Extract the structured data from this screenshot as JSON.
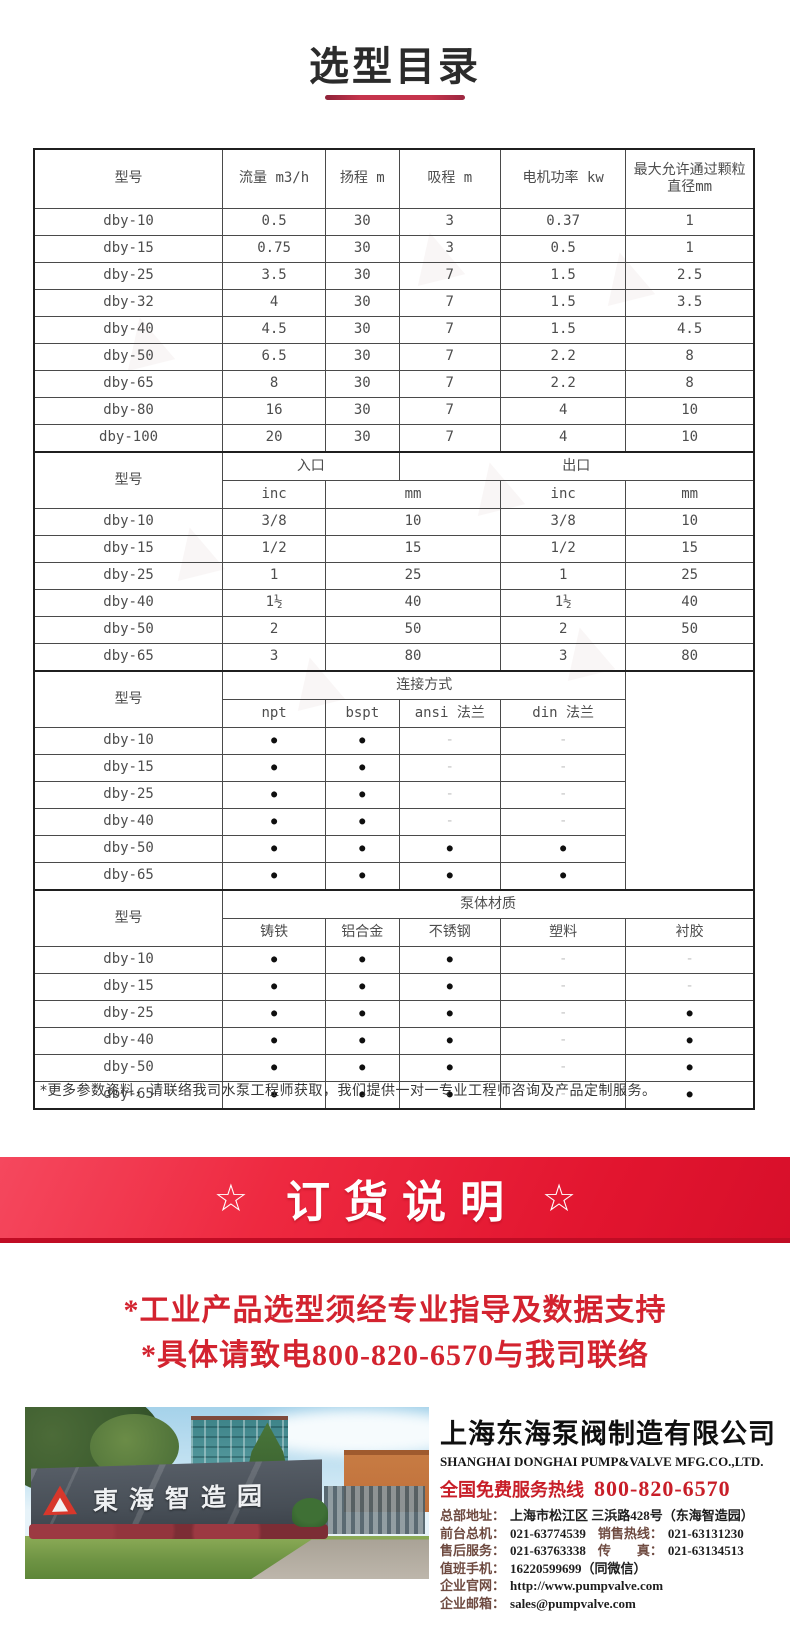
{
  "page": {
    "title": "选型目录"
  },
  "colors": {
    "accent_red": "#d3232f",
    "banner_red": "#e2152f",
    "title_underline": "#c5344c",
    "table_border": "#1f1f1f",
    "hotline_red": "#c81e28"
  },
  "table1": {
    "headers": [
      "型号",
      "流量 m3/h",
      "扬程 m",
      "吸程 m",
      "电机功率 kw",
      "最大允许通过颗粒直径mm"
    ],
    "rows": [
      [
        "dby-10",
        "0.5",
        "30",
        "3",
        "0.37",
        "1"
      ],
      [
        "dby-15",
        "0.75",
        "30",
        "3",
        "0.5",
        "1"
      ],
      [
        "dby-25",
        "3.5",
        "30",
        "7",
        "1.5",
        "2.5"
      ],
      [
        "dby-32",
        "4",
        "30",
        "7",
        "1.5",
        "3.5"
      ],
      [
        "dby-40",
        "4.5",
        "30",
        "7",
        "1.5",
        "4.5"
      ],
      [
        "dby-50",
        "6.5",
        "30",
        "7",
        "2.2",
        "8"
      ],
      [
        "dby-65",
        "8",
        "30",
        "7",
        "2.2",
        "8"
      ],
      [
        "dby-80",
        "16",
        "30",
        "7",
        "4",
        "10"
      ],
      [
        "dby-100",
        "20",
        "30",
        "7",
        "4",
        "10"
      ]
    ]
  },
  "table2": {
    "model_header": "型号",
    "group_headers": [
      "入口",
      "出口"
    ],
    "sub_headers": [
      "inc",
      "mm",
      "inc",
      "mm"
    ],
    "rows": [
      [
        "dby-10",
        "3/8",
        "10",
        "3/8",
        "10"
      ],
      [
        "dby-15",
        "1/2",
        "15",
        "1/2",
        "15"
      ],
      [
        "dby-25",
        "1",
        "25",
        "1",
        "25"
      ],
      [
        "dby-40",
        "1½",
        "40",
        "1½",
        "40"
      ],
      [
        "dby-50",
        "2",
        "50",
        "2",
        "50"
      ],
      [
        "dby-65",
        "3",
        "80",
        "3",
        "80"
      ]
    ]
  },
  "table3": {
    "model_header": "型号",
    "group_header": "连接方式",
    "sub_headers": [
      "npt",
      "bspt",
      "ansi 法兰",
      "din 法兰"
    ],
    "rows": [
      [
        "dby-10",
        "●",
        "●",
        "-",
        "-"
      ],
      [
        "dby-15",
        "●",
        "●",
        "-",
        "-"
      ],
      [
        "dby-25",
        "●",
        "●",
        "-",
        "-"
      ],
      [
        "dby-40",
        "●",
        "●",
        "-",
        "-"
      ],
      [
        "dby-50",
        "●",
        "●",
        "●",
        "●"
      ],
      [
        "dby-65",
        "●",
        "●",
        "●",
        "●"
      ]
    ]
  },
  "table4": {
    "model_header": "型号",
    "group_header": "泵体材质",
    "sub_headers": [
      "铸铁",
      "铝合金",
      "不锈钢",
      "塑料",
      "衬胶"
    ],
    "rows": [
      [
        "dby-10",
        "●",
        "●",
        "●",
        "-",
        "-"
      ],
      [
        "dby-15",
        "●",
        "●",
        "●",
        "-",
        "-"
      ],
      [
        "dby-25",
        "●",
        "●",
        "●",
        "-",
        "●"
      ],
      [
        "dby-40",
        "●",
        "●",
        "●",
        "-",
        "●"
      ],
      [
        "dby-50",
        "●",
        "●",
        "●",
        "-",
        "●"
      ],
      [
        "dby-65",
        "●",
        "●",
        "●",
        "-",
        "●"
      ]
    ]
  },
  "footnote": "*更多参数资料，请联络我司水泵工程师获取，我们提供一对一专业工程师咨询及产品定制服务。",
  "banner": {
    "star": "☆",
    "text": "订货说明"
  },
  "notices": [
    "*工业产品选型须经专业指导及数据支持",
    "*具体请致电800-820-6570与我司联络"
  ],
  "footer": {
    "photo_sign_text": "東海智造园",
    "company_cn": "上海东海泵阀制造有限公司",
    "company_en": "SHANGHAI DONGHAI PUMP&VALVE MFG.CO.,LTD.",
    "hotline_label": "全国免费服务热线",
    "hotline_number": "800-820-6570",
    "details": [
      [
        {
          "label": "总部地址：",
          "value": "上海市松江区 三浜路428号（东海智造园）"
        }
      ],
      [
        {
          "label": "前台总机：",
          "value": "021-63774539"
        },
        {
          "label": "销售热线：",
          "value": "021-63131230"
        }
      ],
      [
        {
          "label": "售后服务：",
          "value": "021-63763338"
        },
        {
          "label": "传　　真：",
          "value": "021-63134513"
        }
      ],
      [
        {
          "label": "值班手机：",
          "value": "16220599699（同微信）"
        }
      ],
      [
        {
          "label": "企业官网：",
          "value": "http://www.pumpvalve.com"
        }
      ],
      [
        {
          "label": "企业邮箱：",
          "value": "sales@pumpvalve.com"
        }
      ]
    ]
  }
}
